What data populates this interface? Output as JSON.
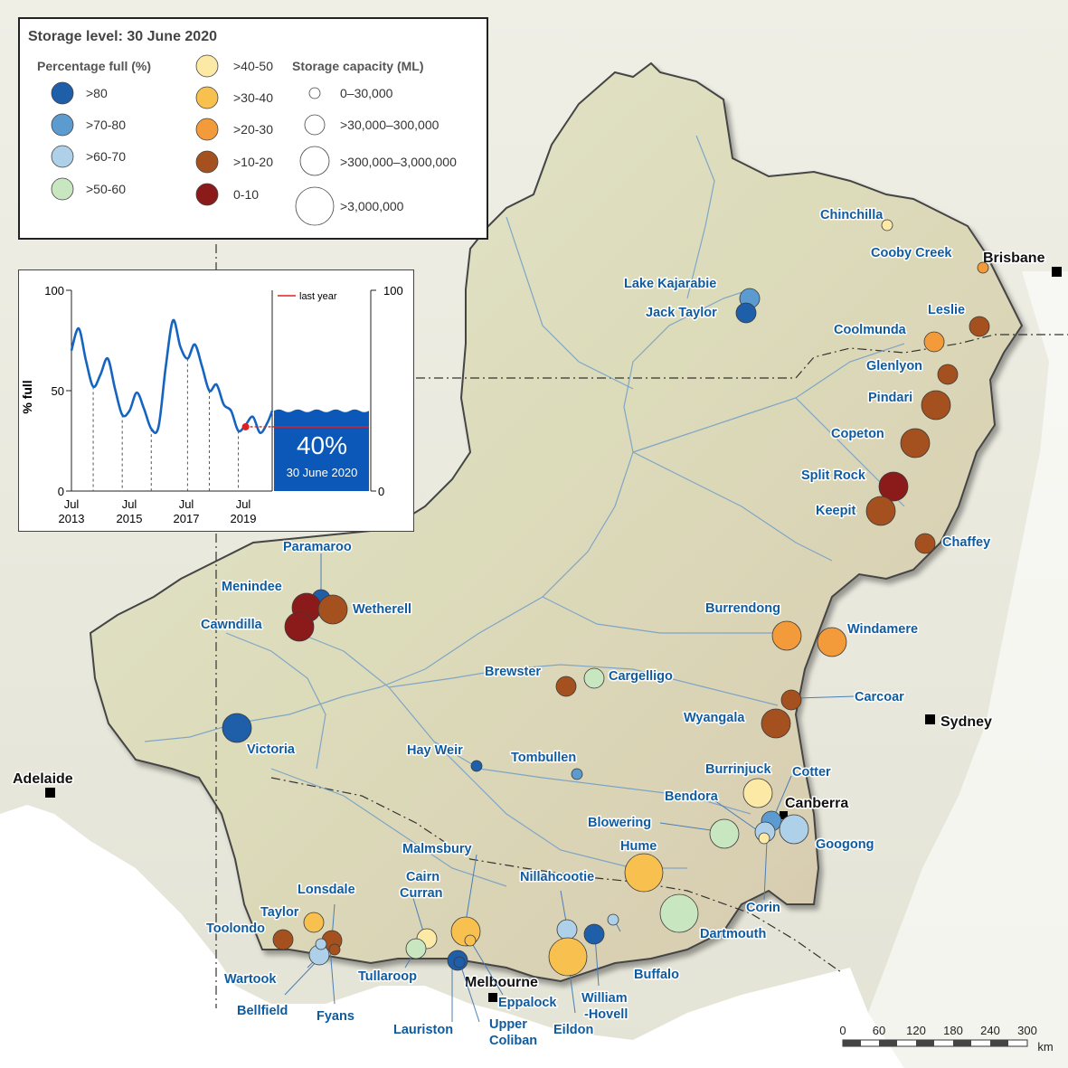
{
  "legend": {
    "title": "Storage level: 30 June  2020",
    "pct_heading": "Percentage full (%)",
    "cap_heading": "Storage capacity (ML)",
    "pct_classes": [
      {
        "label": ">80",
        "color": "#1f5ea8"
      },
      {
        "label": ">70-80",
        "color": "#5b9bd0"
      },
      {
        "label": ">60-70",
        "color": "#aed0e8"
      },
      {
        "label": ">50-60",
        "color": "#c8e6c0"
      },
      {
        "label": ">40-50",
        "color": "#fce9a6"
      },
      {
        "label": ">30-40",
        "color": "#f8c14f"
      },
      {
        "label": ">20-30",
        "color": "#f39a3b"
      },
      {
        "label": ">10-20",
        "color": "#a5511f"
      },
      {
        "label": "0-10",
        "color": "#8b1a1a"
      }
    ],
    "cap_classes": [
      "0–30,000",
      ">30,000–300,000",
      ">300,000–3,000,000",
      ">3,000,000"
    ]
  },
  "chart": {
    "ylabel": "% full",
    "y_ticks": [
      "100",
      "50",
      "0"
    ],
    "right_ticks": [
      "100",
      "0"
    ],
    "x_ticks": [
      {
        "month": "Jul",
        "year": "2013"
      },
      {
        "month": "Jul",
        "year": "2015"
      },
      {
        "month": "Jul",
        "year": "2017"
      },
      {
        "month": "Jul",
        "year": "2019"
      }
    ],
    "legend_label": "last year",
    "current_value": "40%",
    "current_date": "30 June 2020"
  },
  "chart_data": {
    "type": "line",
    "ylabel": "% full",
    "ylim": [
      0,
      100
    ],
    "series": [
      {
        "name": "",
        "x": [
          "2013-07",
          "2013-10",
          "2014-01",
          "2014-04",
          "2014-07",
          "2014-10",
          "2015-01",
          "2015-04",
          "2015-07",
          "2015-10",
          "2016-01",
          "2016-04",
          "2016-07",
          "2016-10",
          "2017-01",
          "2017-04",
          "2017-07",
          "2017-10",
          "2018-01",
          "2018-04",
          "2018-07",
          "2018-10",
          "2019-01",
          "2019-04",
          "2019-07",
          "2019-10",
          "2020-01",
          "2020-04",
          "2020-06"
        ],
        "y": [
          70,
          81,
          65,
          52,
          58,
          66,
          51,
          38,
          40,
          49,
          41,
          31,
          32,
          62,
          85,
          72,
          66,
          73,
          62,
          50,
          53,
          43,
          40,
          30,
          33,
          37,
          29,
          34,
          40
        ]
      }
    ],
    "last_year_value": 32,
    "current_value": 40,
    "current_date": "30 June 2020"
  },
  "cities": [
    "Brisbane",
    "Sydney",
    "Canberra",
    "Adelaide",
    "Melbourne"
  ],
  "storages": [
    {
      "name": "Chinchilla",
      "pct_class": ">40-50"
    },
    {
      "name": "Cooby Creek",
      "pct_class": ">20-30"
    },
    {
      "name": "Lake Kajarabie",
      "pct_class": ">70-80"
    },
    {
      "name": "Jack Taylor",
      "pct_class": ">80"
    },
    {
      "name": "Leslie",
      "pct_class": ">10-20"
    },
    {
      "name": "Coolmunda",
      "pct_class": ">20-30"
    },
    {
      "name": "Glenlyon",
      "pct_class": ">10-20"
    },
    {
      "name": "Pindari",
      "pct_class": ">10-20"
    },
    {
      "name": "Copeton",
      "pct_class": ">10-20"
    },
    {
      "name": "Split Rock",
      "pct_class": "0-10"
    },
    {
      "name": "Keepit",
      "pct_class": ">10-20"
    },
    {
      "name": "Chaffey",
      "pct_class": ">10-20"
    },
    {
      "name": "Paramaroo",
      "pct_class": ">80"
    },
    {
      "name": "Menindee",
      "pct_class": "0-10"
    },
    {
      "name": "Wetherell",
      "pct_class": ">10-20"
    },
    {
      "name": "Cawndilla",
      "pct_class": "0-10"
    },
    {
      "name": "Burrendong",
      "pct_class": ">20-30"
    },
    {
      "name": "Windamere",
      "pct_class": ">20-30"
    },
    {
      "name": "Brewster",
      "pct_class": ">10-20"
    },
    {
      "name": "Cargelligo",
      "pct_class": ">50-60"
    },
    {
      "name": "Carcoar",
      "pct_class": ">10-20"
    },
    {
      "name": "Wyangala",
      "pct_class": ">10-20"
    },
    {
      "name": "Victoria",
      "pct_class": ">80"
    },
    {
      "name": "Hay Weir",
      "pct_class": ">80"
    },
    {
      "name": "Tombullen",
      "pct_class": ">70-80"
    },
    {
      "name": "Burrinjuck",
      "pct_class": ">40-50"
    },
    {
      "name": "Cotter",
      "pct_class": ">70-80"
    },
    {
      "name": "Bendora",
      "pct_class": ">60-70"
    },
    {
      "name": "Blowering",
      "pct_class": ">50-60"
    },
    {
      "name": "Googong",
      "pct_class": ">60-70"
    },
    {
      "name": "Corin",
      "pct_class": ">40-50"
    },
    {
      "name": "Hume",
      "pct_class": ">30-40"
    },
    {
      "name": "Dartmouth",
      "pct_class": ">50-60"
    },
    {
      "name": "Malmsbury",
      "pct_class": ">30-40"
    },
    {
      "name": "Cairn Curran",
      "pct_class": ">40-50"
    },
    {
      "name": "Nillahcootie",
      "pct_class": ">60-70"
    },
    {
      "name": "Lonsdale",
      "pct_class": ">30-40"
    },
    {
      "name": "Taylor",
      "pct_class": ">30-40"
    },
    {
      "name": "Toolondo",
      "pct_class": ">10-20"
    },
    {
      "name": "Wartook",
      "pct_class": ">60-70"
    },
    {
      "name": "Bellfield",
      "pct_class": ">60-70"
    },
    {
      "name": "Fyans",
      "pct_class": ">10-20"
    },
    {
      "name": "Tullaroop",
      "pct_class": ">50-60"
    },
    {
      "name": "Lauriston",
      "pct_class": ">80"
    },
    {
      "name": "Upper Coliban",
      "pct_class": ">80"
    },
    {
      "name": "Eppalock",
      "pct_class": ">30-40"
    },
    {
      "name": "Eildon",
      "pct_class": ">30-40"
    },
    {
      "name": "William -Hovell",
      "pct_class": ">80"
    },
    {
      "name": "Buffalo",
      "pct_class": ">60-70"
    }
  ],
  "scale_bar": {
    "ticks": [
      "0",
      "60",
      "120",
      "180",
      "240",
      "300"
    ],
    "unit": "km"
  }
}
